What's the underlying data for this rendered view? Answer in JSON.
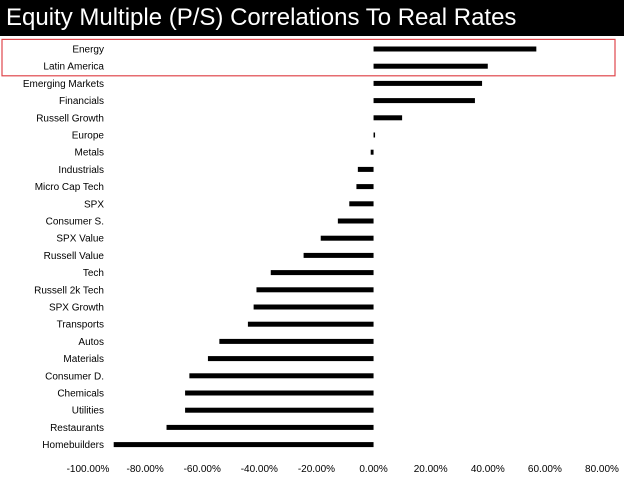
{
  "title": "Equity Multiple (P/S) Correlations To Real Rates",
  "highlight_color": "#e0474c",
  "bar_color": "#000000",
  "chart_data": {
    "type": "bar",
    "orientation": "horizontal",
    "title": "Equity Multiple (P/S) Correlations To Real Rates",
    "categories": [
      "Energy",
      "Latin America",
      "Emerging Markets",
      "Financials",
      "Russell Growth",
      "Europe",
      "Metals",
      "Industrials",
      "Micro Cap Tech",
      "SPX",
      "Consumer S.",
      "SPX Value",
      "Russell Value",
      "Tech",
      "Russell 2k Tech",
      "SPX Growth",
      "Transports",
      "Autos",
      "Materials",
      "Consumer D.",
      "Chemicals",
      "Utilities",
      "Restaurants",
      "Homebuilders"
    ],
    "values": [
      57,
      40,
      38,
      35.5,
      10,
      0.5,
      -1,
      -5.5,
      -6,
      -8.5,
      -12.5,
      -18.5,
      -24.5,
      -36,
      -41,
      -42,
      -44,
      -54,
      -58,
      -64.5,
      -66,
      -66,
      -72.5,
      -91
    ],
    "xlim": [
      -100,
      80
    ],
    "xticks": [
      "-100.00%",
      "-80.00%",
      "-60.00%",
      "-40.00%",
      "-20.00%",
      "0.00%",
      "20.00%",
      "40.00%",
      "60.00%",
      "80.00%"
    ],
    "xtick_values": [
      -100,
      -80,
      -60,
      -40,
      -20,
      0,
      20,
      40,
      60,
      80
    ],
    "highlighted_categories": [
      "Energy",
      "Latin America"
    ],
    "grid": false,
    "legend": "none"
  }
}
